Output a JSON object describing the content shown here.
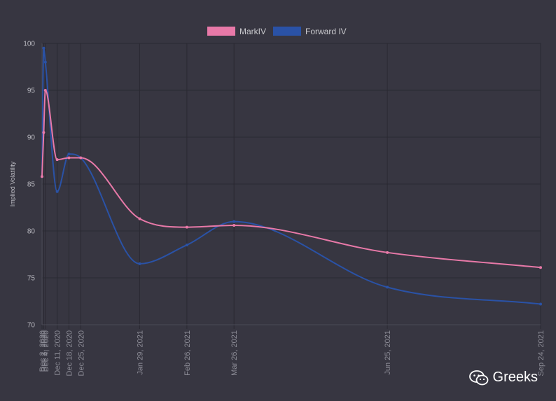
{
  "chart_data": {
    "type": "line",
    "ylabel": "Implied Volatility",
    "ylim": [
      70,
      100
    ],
    "yticks": [
      "100",
      "95",
      "90",
      "85",
      "80",
      "75",
      "70"
    ],
    "grid": true,
    "legend_position": "top-center",
    "categories": [
      "Dec 2, 2020",
      "Dec 3, 2020",
      "Dec 4, 2020",
      "Dec 11, 2020",
      "Dec 18, 2020",
      "Dec 25, 2020",
      "Jan 29, 2021",
      "Feb 26, 2021",
      "Mar 26, 2021",
      "Jun 25, 2021",
      "Sep 24, 2021"
    ],
    "x_days": [
      0,
      1,
      2,
      9,
      16,
      23,
      58,
      86,
      114,
      205,
      296
    ],
    "series": [
      {
        "name": "MarkIV",
        "color": "#e879a8",
        "values": [
          85.8,
          90.5,
          95.0,
          87.6,
          87.8,
          87.8,
          81.3,
          80.4,
          80.6,
          77.7,
          76.1
        ]
      },
      {
        "name": "Forward IV",
        "color": "#2a52a6",
        "values": [
          85.8,
          99.5,
          98.0,
          84.2,
          88.2,
          87.8,
          76.5,
          78.5,
          81.0,
          74.0,
          72.2
        ]
      }
    ]
  },
  "watermark": {
    "text": "Greeks",
    "icon": "wechat-icon"
  }
}
